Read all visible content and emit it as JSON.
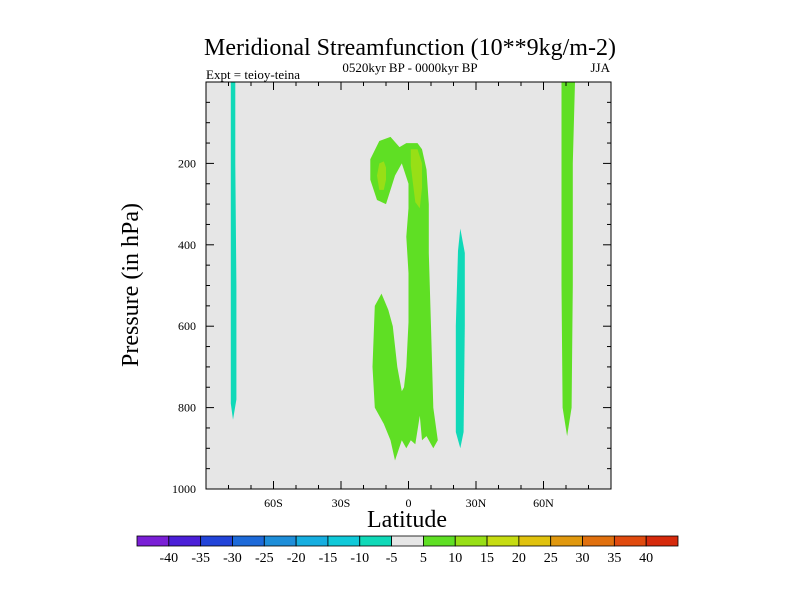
{
  "chart_data": {
    "type": "contour",
    "title": "Meridional Streamfunction (10**9kg/m-2)",
    "subtitle": "0520kyr BP - 0000kyr BP",
    "left_label": "Expt = teioy-teina",
    "right_label": "JJA",
    "xlabel": "Latitude",
    "ylabel": "Pressure (in hPa)",
    "xlim": [
      -90,
      90
    ],
    "ylim": [
      1000,
      0
    ],
    "x_ticks": [
      {
        "value": -60,
        "label": "60S"
      },
      {
        "value": -30,
        "label": "30S"
      },
      {
        "value": 0,
        "label": "0"
      },
      {
        "value": 30,
        "label": "30N"
      },
      {
        "value": 60,
        "label": "60N"
      }
    ],
    "y_ticks": [
      {
        "value": 200,
        "label": "200"
      },
      {
        "value": 400,
        "label": "400"
      },
      {
        "value": 600,
        "label": "600"
      },
      {
        "value": 800,
        "label": "800"
      },
      {
        "value": 1000,
        "label": "1000"
      }
    ],
    "background_color": "#e6e6e6",
    "levels": [
      {
        "label": "-40",
        "color": "#7a1fd6"
      },
      {
        "label": "-35",
        "color": "#4b1fd8"
      },
      {
        "label": "-30",
        "color": "#2244d9"
      },
      {
        "label": "-25",
        "color": "#1d6ad9"
      },
      {
        "label": "-20",
        "color": "#1e8ed9"
      },
      {
        "label": "-15",
        "color": "#16aee0"
      },
      {
        "label": "-10",
        "color": "#10c9d9"
      },
      {
        "label": "-5",
        "color": "#10d9b8"
      },
      {
        "label": "5",
        "color": "#e6e6e6"
      },
      {
        "label": "10",
        "color": "#5fdf24"
      },
      {
        "label": "15",
        "color": "#98df16"
      },
      {
        "label": "20",
        "color": "#c6dc12"
      },
      {
        "label": "25",
        "color": "#e0c20e"
      },
      {
        "label": "30",
        "color": "#e0980e"
      },
      {
        "label": "35",
        "color": "#e0700e"
      },
      {
        "label": "40",
        "color": "#e04a0e"
      },
      {
        "label": "",
        "color": "#d62a0c"
      }
    ],
    "regions": [
      {
        "name": "southern-negative-cell",
        "value": -7.5,
        "color": "#10d9b8",
        "points": [
          [
            -79,
            0
          ],
          [
            -77,
            0
          ],
          [
            -77,
            200
          ],
          [
            -76.5,
            500
          ],
          [
            -76.5,
            780
          ],
          [
            -78,
            830
          ],
          [
            -79,
            790
          ]
        ]
      },
      {
        "name": "tropical-positive-cell",
        "value": 7.5,
        "color": "#5fdf24",
        "points": [
          [
            -13,
            145
          ],
          [
            -8,
            135
          ],
          [
            -4,
            160
          ],
          [
            -1,
            150
          ],
          [
            4,
            150
          ],
          [
            6,
            165
          ],
          [
            8,
            215
          ],
          [
            9,
            300
          ],
          [
            9,
            420
          ],
          [
            10,
            600
          ],
          [
            11,
            800
          ],
          [
            13,
            880
          ],
          [
            11,
            900
          ],
          [
            8,
            870
          ],
          [
            6,
            880
          ],
          [
            5,
            820
          ],
          [
            3,
            890
          ],
          [
            1,
            880
          ],
          [
            -1,
            900
          ],
          [
            -3,
            880
          ],
          [
            -6,
            930
          ],
          [
            -8,
            880
          ],
          [
            -11,
            840
          ],
          [
            -15,
            800
          ],
          [
            -16,
            700
          ],
          [
            -15,
            550
          ],
          [
            -12,
            520
          ],
          [
            -9,
            560
          ],
          [
            -7,
            600
          ],
          [
            -5,
            700
          ],
          [
            -3,
            760
          ],
          [
            -2,
            750
          ],
          [
            -1,
            700
          ],
          [
            0,
            590
          ],
          [
            0,
            470
          ],
          [
            -1,
            380
          ],
          [
            0,
            310
          ],
          [
            0,
            250
          ],
          [
            -3,
            200
          ],
          [
            -6,
            230
          ],
          [
            -10,
            300
          ],
          [
            -14,
            290
          ],
          [
            -17,
            240
          ],
          [
            -17,
            190
          ]
        ]
      },
      {
        "name": "tropical-core-south",
        "value": 12.5,
        "color": "#98df16",
        "points": [
          [
            -13,
            200
          ],
          [
            -11,
            195
          ],
          [
            -10,
            210
          ],
          [
            -10,
            240
          ],
          [
            -11,
            265
          ],
          [
            -13,
            265
          ],
          [
            -14,
            230
          ]
        ]
      },
      {
        "name": "tropical-core-north",
        "value": 12.5,
        "color": "#98df16",
        "points": [
          [
            1,
            165
          ],
          [
            4,
            165
          ],
          [
            6,
            200
          ],
          [
            6,
            260
          ],
          [
            5,
            310
          ],
          [
            3,
            295
          ],
          [
            2,
            250
          ],
          [
            1,
            205
          ]
        ]
      },
      {
        "name": "subtropical-negative-cell",
        "value": -7.5,
        "color": "#10d9b8",
        "points": [
          [
            22,
            415
          ],
          [
            23,
            360
          ],
          [
            25,
            420
          ],
          [
            25,
            600
          ],
          [
            24.5,
            860
          ],
          [
            23,
            900
          ],
          [
            21,
            860
          ],
          [
            21,
            600
          ]
        ]
      },
      {
        "name": "northern-positive-cell",
        "value": 7.5,
        "color": "#5fdf24",
        "points": [
          [
            68,
            0
          ],
          [
            74,
            0
          ],
          [
            73,
            200
          ],
          [
            73,
            500
          ],
          [
            72.5,
            800
          ],
          [
            70.5,
            870
          ],
          [
            68.5,
            800
          ],
          [
            68,
            500
          ],
          [
            68,
            200
          ]
        ]
      }
    ]
  }
}
